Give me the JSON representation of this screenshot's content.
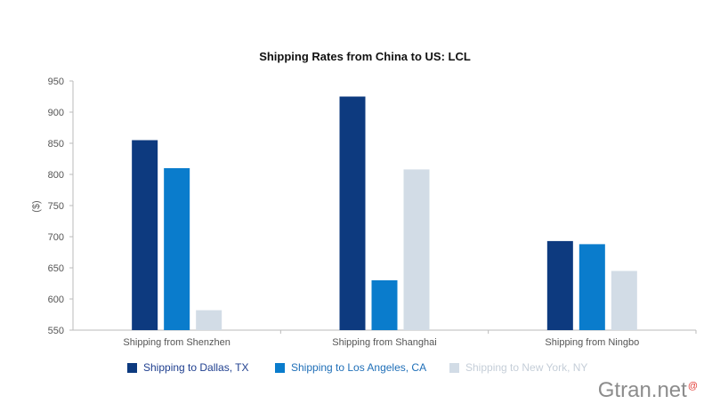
{
  "chart_data": {
    "type": "bar",
    "title": "Shipping Rates from China to US: LCL",
    "xlabel": "",
    "ylabel": "($)",
    "ylim": [
      550,
      950
    ],
    "yticks": [
      550,
      600,
      650,
      700,
      750,
      800,
      850,
      900,
      950
    ],
    "categories": [
      "Shipping from Shenzhen",
      "Shipping from Shanghai",
      "Shipping from Ningbo"
    ],
    "series": [
      {
        "name": "Shipping to Dallas, TX",
        "color": "#0d3a7f",
        "values": [
          855,
          925,
          693
        ]
      },
      {
        "name": "Shipping to Los Angeles, CA",
        "color": "#0a7ccc",
        "values": [
          810,
          630,
          688
        ]
      },
      {
        "name": "Shipping to New York, NY",
        "color": "#d2dce6",
        "values": [
          582,
          808,
          645
        ]
      }
    ],
    "grid": false,
    "legend_position": "bottom"
  },
  "legend_text_colors": [
    "#1f3f8f",
    "#1f6fb8",
    "#c5ced8"
  ],
  "watermark": {
    "text": "Gtran.net",
    "mark": "@"
  }
}
